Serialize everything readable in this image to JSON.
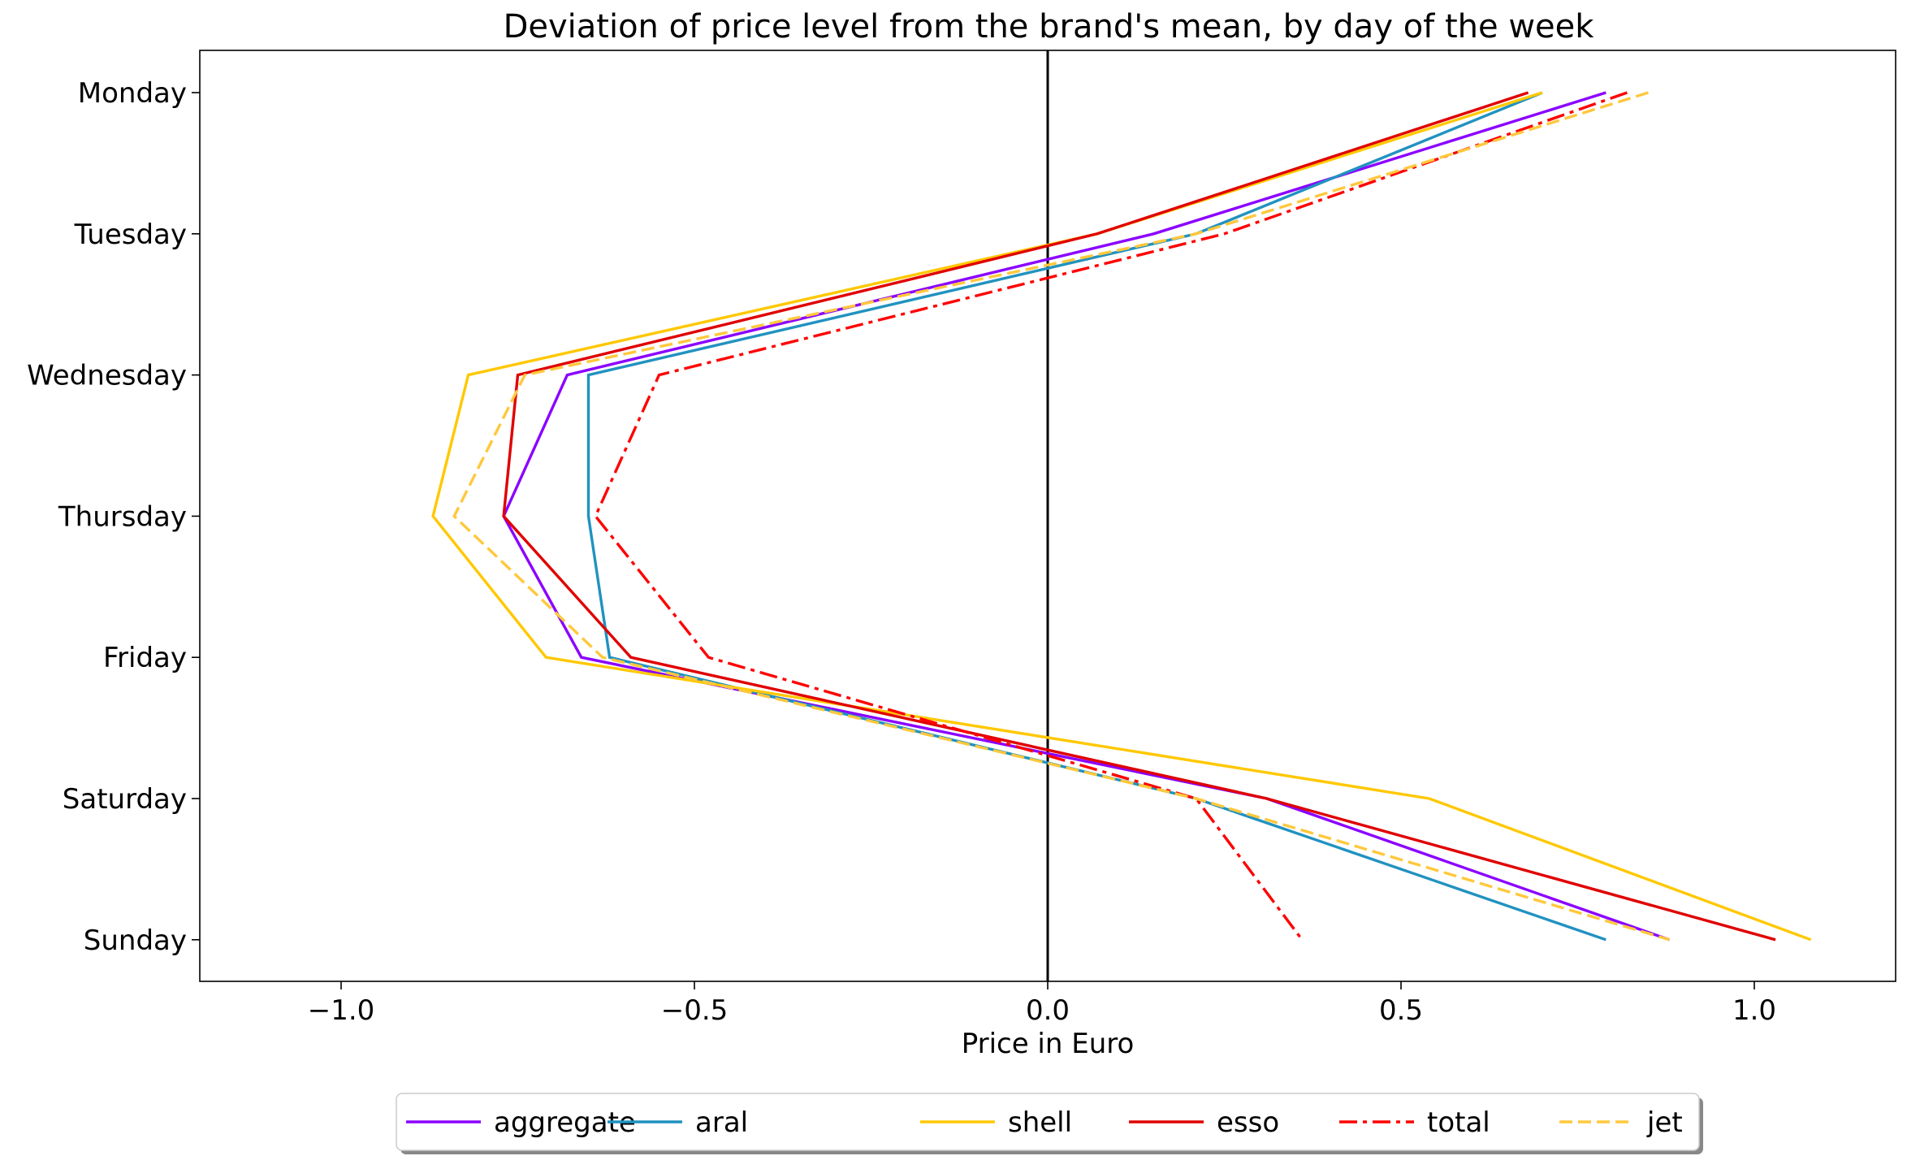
{
  "chart_data": {
    "type": "line",
    "orientation": "horizontal",
    "title": "Deviation of price level from the brand's mean, by day of the week",
    "xlabel": "Price in Euro",
    "ylabel": "",
    "xlim": [
      -1.2,
      1.2
    ],
    "x_ticks": [
      -1.0,
      -0.5,
      0.0,
      0.5,
      1.0
    ],
    "x_tick_labels": [
      "−1.0",
      "−0.5",
      "0.0",
      "0.5",
      "1.0"
    ],
    "categories": [
      "Monday",
      "Tuesday",
      "Wednesday",
      "Thursday",
      "Friday",
      "Saturday",
      "Sunday"
    ],
    "zero_line": true,
    "grid": false,
    "legend_position": "bottom-center, below axes, 6 columns",
    "series": [
      {
        "name": "aggregate",
        "color": "#8b00ff",
        "style": "solid",
        "values": [
          0.79,
          0.15,
          -0.68,
          -0.77,
          -0.66,
          0.31,
          0.88
        ]
      },
      {
        "name": "aral",
        "color": "#2192c0",
        "style": "solid",
        "values": [
          0.7,
          0.21,
          -0.65,
          -0.65,
          -0.62,
          0.21,
          0.79
        ]
      },
      {
        "name": "shell",
        "color": "#ffc800",
        "style": "solid",
        "values": [
          0.7,
          0.07,
          -0.82,
          -0.87,
          -0.71,
          0.54,
          1.08
        ]
      },
      {
        "name": "esso",
        "color": "#e00000",
        "style": "solid",
        "values": [
          0.68,
          0.07,
          -0.75,
          -0.77,
          -0.59,
          0.31,
          1.03
        ]
      },
      {
        "name": "total",
        "color": "#ff0000",
        "style": "dashdot",
        "values": [
          0.82,
          0.25,
          -0.55,
          -0.64,
          -0.48,
          0.21,
          0.36
        ]
      },
      {
        "name": "jet",
        "color": "#ffc83c",
        "style": "dashed",
        "values": [
          0.85,
          0.21,
          -0.74,
          -0.84,
          -0.63,
          0.21,
          0.88
        ]
      }
    ]
  }
}
